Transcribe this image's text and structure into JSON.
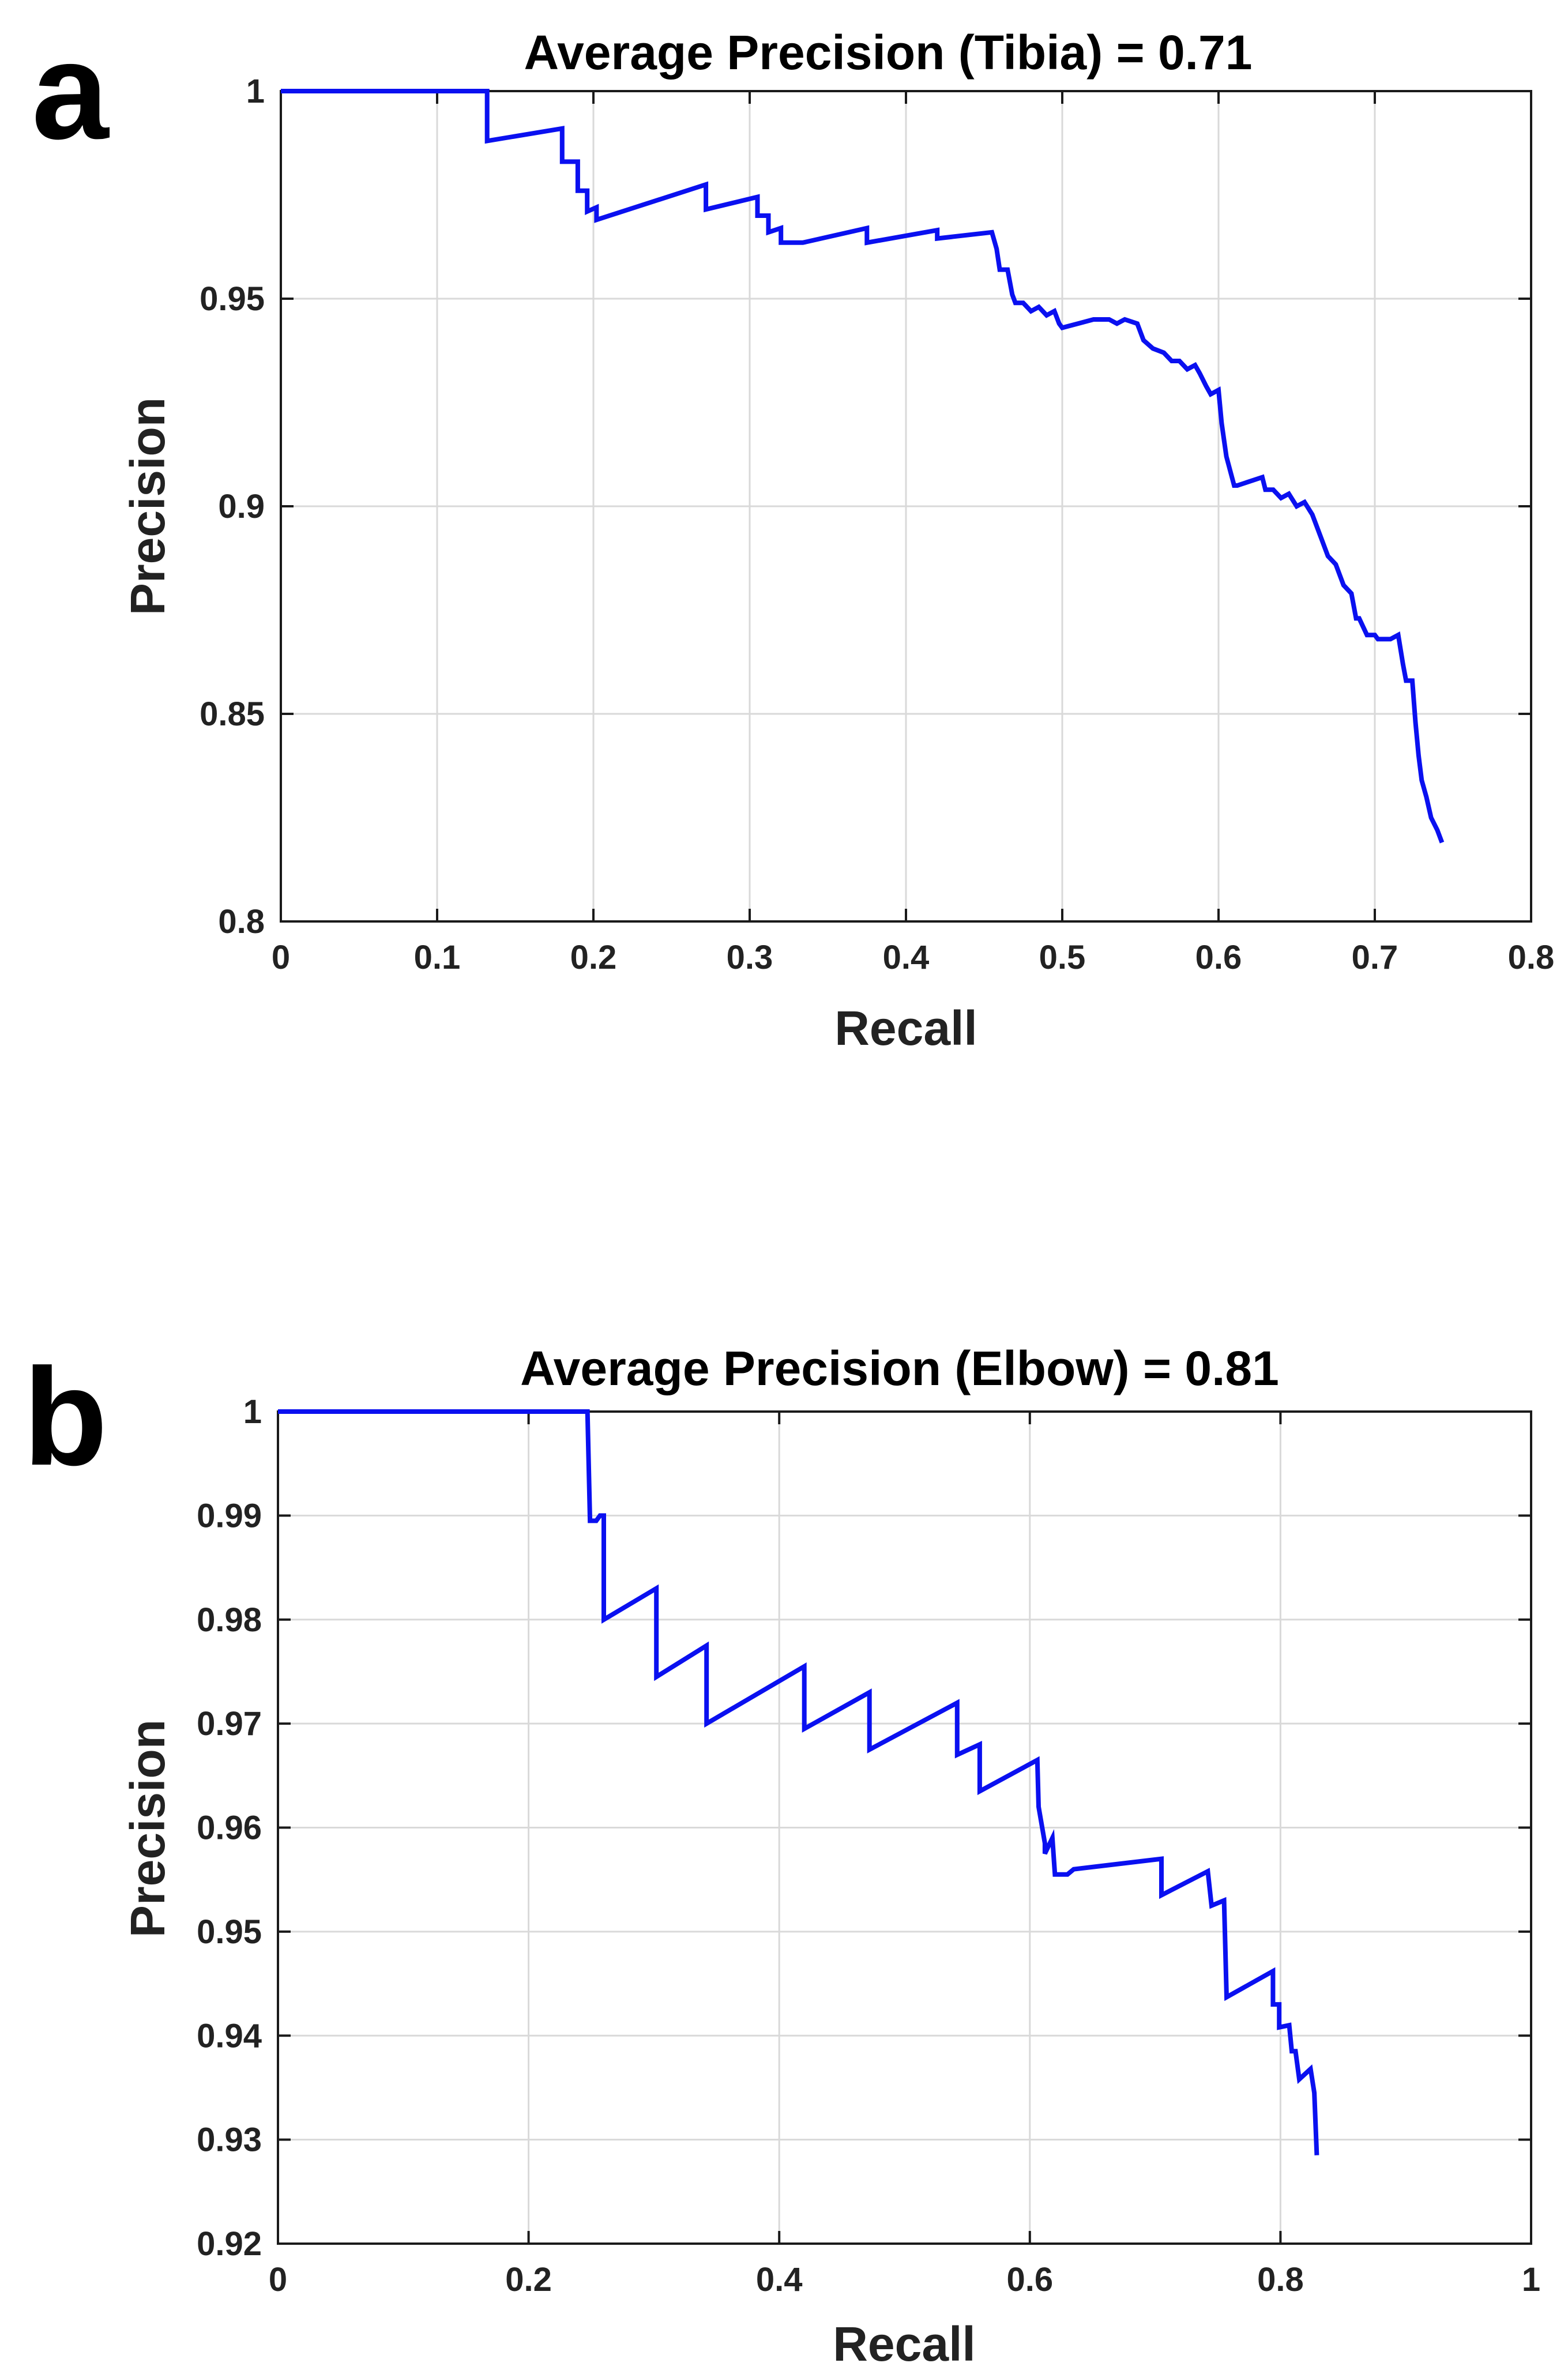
{
  "chart_data": [
    {
      "panel_label": "a",
      "type": "line",
      "title": "Average Precision (Tibia) = 0.71",
      "xlabel": "Recall",
      "ylabel": "Precision",
      "xlim": [
        0,
        0.8
      ],
      "ylim": [
        0.8,
        1
      ],
      "xticks": [
        0,
        0.1,
        0.2,
        0.3,
        0.4,
        0.5,
        0.6,
        0.7,
        0.8
      ],
      "xtick_labels": [
        "0",
        "0.1",
        "0.2",
        "0.3",
        "0.4",
        "0.5",
        "0.6",
        "0.7",
        "0.8"
      ],
      "yticks": [
        0.8,
        0.85,
        0.9,
        0.95,
        1
      ],
      "ytick_labels": [
        "0.8",
        "0.85",
        "0.9",
        "0.95",
        "1"
      ],
      "grid": true,
      "series": [
        {
          "name": "Tibia",
          "color": "#0a10f0",
          "x": [
            0,
            0.132,
            0.132,
            0.18,
            0.18,
            0.19,
            0.19,
            0.196,
            0.196,
            0.202,
            0.202,
            0.272,
            0.272,
            0.305,
            0.305,
            0.312,
            0.312,
            0.32,
            0.32,
            0.334,
            0.334,
            0.375,
            0.375,
            0.42,
            0.42,
            0.455,
            0.458,
            0.46,
            0.465,
            0.468,
            0.47,
            0.475,
            0.48,
            0.485,
            0.49,
            0.495,
            0.498,
            0.5,
            0.51,
            0.52,
            0.53,
            0.535,
            0.54,
            0.548,
            0.552,
            0.558,
            0.565,
            0.57,
            0.575,
            0.58,
            0.585,
            0.588,
            0.592,
            0.595,
            0.6,
            0.602,
            0.605,
            0.61,
            0.612,
            0.628,
            0.63,
            0.635,
            0.64,
            0.645,
            0.65,
            0.655,
            0.66,
            0.665,
            0.67,
            0.675,
            0.68,
            0.685,
            0.688,
            0.69,
            0.695,
            0.7,
            0.702,
            0.705,
            0.71,
            0.715,
            0.718,
            0.72,
            0.724,
            0.726,
            0.728,
            0.73,
            0.733,
            0.736,
            0.74,
            0.743
          ],
          "y": [
            1,
            1,
            0.988,
            0.991,
            0.983,
            0.983,
            0.976,
            0.976,
            0.971,
            0.972,
            0.969,
            0.9775,
            0.9715,
            0.9745,
            0.97,
            0.97,
            0.966,
            0.967,
            0.9635,
            0.9635,
            0.9635,
            0.967,
            0.9635,
            0.9665,
            0.9645,
            0.966,
            0.962,
            0.957,
            0.957,
            0.951,
            0.949,
            0.949,
            0.947,
            0.948,
            0.946,
            0.947,
            0.944,
            0.943,
            0.944,
            0.945,
            0.945,
            0.944,
            0.945,
            0.944,
            0.94,
            0.938,
            0.937,
            0.935,
            0.935,
            0.933,
            0.934,
            0.932,
            0.929,
            0.927,
            0.928,
            0.92,
            0.912,
            0.905,
            0.905,
            0.907,
            0.904,
            0.904,
            0.902,
            0.903,
            0.9,
            0.901,
            0.898,
            0.893,
            0.888,
            0.886,
            0.881,
            0.879,
            0.873,
            0.873,
            0.869,
            0.869,
            0.868,
            0.868,
            0.868,
            0.869,
            0.862,
            0.858,
            0.858,
            0.848,
            0.84,
            0.834,
            0.83,
            0.825,
            0.822,
            0.819
          ]
        }
      ]
    },
    {
      "panel_label": "b",
      "type": "line",
      "title": "Average Precision (Elbow) = 0.81",
      "xlabel": "Recall",
      "ylabel": "Precision",
      "xlim": [
        0,
        1
      ],
      "ylim": [
        0.92,
        1
      ],
      "xticks": [
        0,
        0.2,
        0.4,
        0.6,
        0.8,
        1
      ],
      "xtick_labels": [
        "0",
        "0.2",
        "0.4",
        "0.6",
        "0.8",
        "1"
      ],
      "yticks": [
        0.92,
        0.93,
        0.94,
        0.95,
        0.96,
        0.97,
        0.98,
        0.99,
        1
      ],
      "ytick_labels": [
        "0.92",
        "0.93",
        "0.94",
        "0.95",
        "0.96",
        "0.97",
        "0.98",
        "0.99",
        "1"
      ],
      "grid": true,
      "series": [
        {
          "name": "Elbow",
          "color": "#0a10f0",
          "x": [
            0,
            0.247,
            0.249,
            0.254,
            0.257,
            0.26,
            0.26,
            0.302,
            0.302,
            0.342,
            0.342,
            0.42,
            0.42,
            0.472,
            0.472,
            0.542,
            0.542,
            0.56,
            0.56,
            0.606,
            0.607,
            0.612,
            0.612,
            0.618,
            0.62,
            0.63,
            0.635,
            0.705,
            0.705,
            0.742,
            0.745,
            0.755,
            0.757,
            0.794,
            0.794,
            0.799,
            0.799,
            0.807,
            0.809,
            0.812,
            0.815,
            0.824,
            0.827,
            0.829
          ],
          "y": [
            1,
            1,
            0.9895,
            0.9895,
            0.99,
            0.99,
            0.98,
            0.983,
            0.9745,
            0.9775,
            0.97,
            0.9755,
            0.9695,
            0.973,
            0.9675,
            0.972,
            0.967,
            0.968,
            0.9635,
            0.9665,
            0.962,
            0.9585,
            0.9575,
            0.959,
            0.9555,
            0.9555,
            0.956,
            0.957,
            0.9535,
            0.9558,
            0.9525,
            0.953,
            0.9437,
            0.9462,
            0.943,
            0.943,
            0.9408,
            0.941,
            0.9385,
            0.9385,
            0.9358,
            0.9368,
            0.9345,
            0.9285
          ]
        }
      ]
    }
  ]
}
